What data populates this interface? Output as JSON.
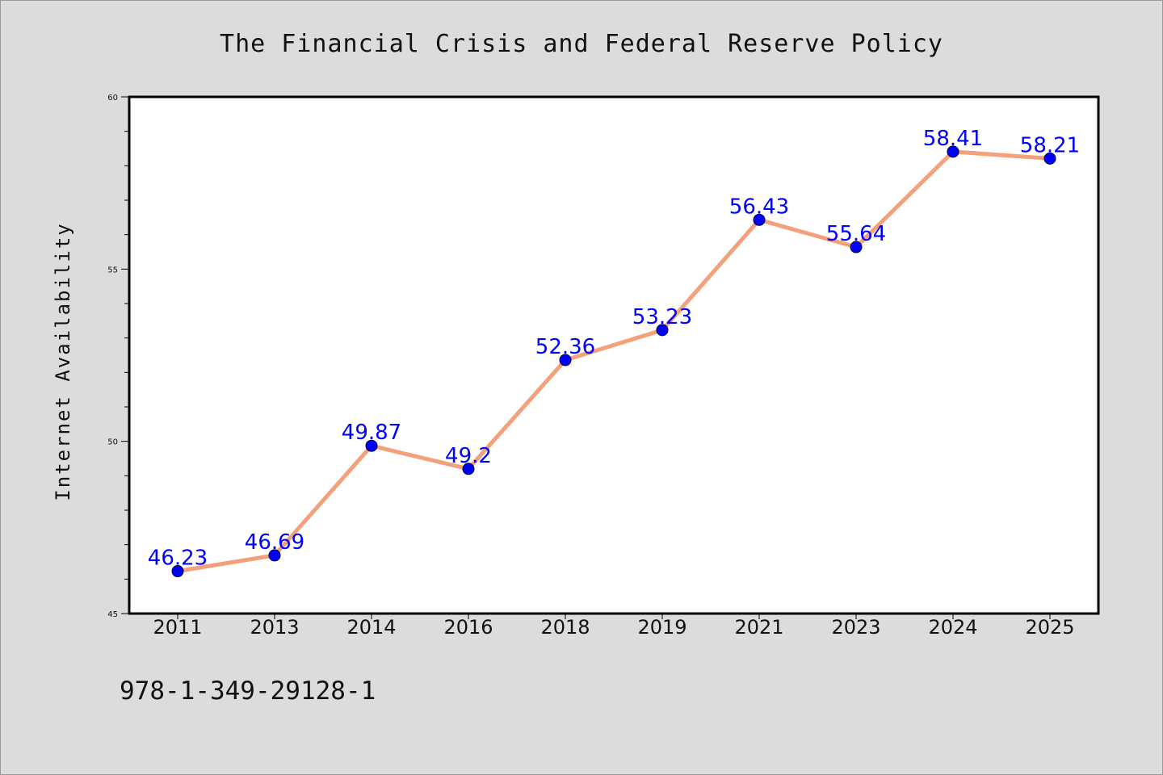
{
  "chart_data": {
    "type": "line",
    "title": "The Financial Crisis and Federal Reserve Policy",
    "xlabel": "",
    "ylabel": "Internet Availability",
    "categories": [
      "2011",
      "2013",
      "2014",
      "2016",
      "2018",
      "2019",
      "2021",
      "2023",
      "2024",
      "2025"
    ],
    "series": [
      {
        "values": [
          46.23,
          46.69,
          49.87,
          49.2,
          52.36,
          53.23,
          56.43,
          55.64,
          58.41,
          58.21
        ],
        "labels": [
          "46.23",
          "46.69",
          "49.87",
          "49.2",
          "52.36",
          "53.23",
          "56.43",
          "55.64",
          "58.41",
          "58.21"
        ],
        "line_color": "#f4a07a",
        "marker_color": "#0000ff"
      }
    ],
    "ylim": [
      45,
      60
    ],
    "yticks": [
      "45",
      "50",
      "55",
      "60"
    ],
    "grid": false,
    "legend": "none"
  },
  "footer_text": "978-1-349-29128-1",
  "colors": {
    "background": "#dcdcdc",
    "plot_background": "#ffffff",
    "line": "#f4a07a",
    "marker": "#0000ff",
    "data_label": "#0000ff"
  }
}
